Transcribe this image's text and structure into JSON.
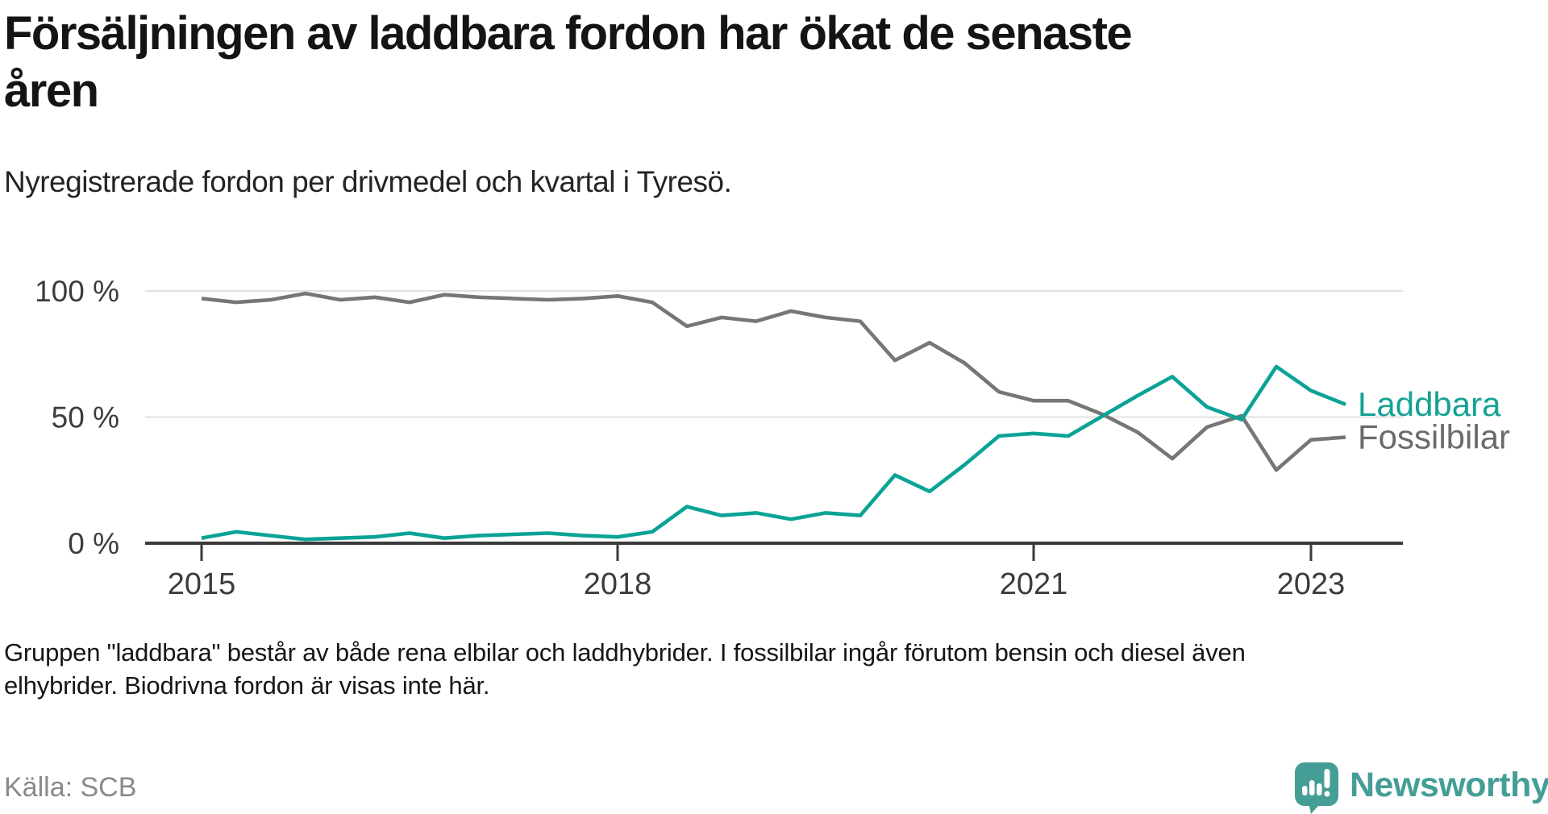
{
  "header": {
    "title": "Försäljningen av laddbara fordon har ökat de senaste åren",
    "title_lines": [
      "Försäljningen av laddbara fordon har ökat de senaste",
      "åren"
    ],
    "subtitle": "Nyregistrerade fordon per drivmedel och kvartal i Tyresö."
  },
  "footer": {
    "note": "Gruppen \"laddbara\" består av både rena elbilar och laddhybrider. I fossilbilar ingår förutom bensin och diesel även elhybrider. Biodrivna fordon är visas inte här.",
    "note_lines": [
      "Gruppen \"laddbara\" består av både rena elbilar och laddhybrider. I fossilbilar ingår förutom bensin och diesel även",
      "elhybrider. Biodrivna fordon är visas inte här."
    ],
    "source": "Källa: SCB",
    "logo_text": "Newsworthy"
  },
  "colors": {
    "laddbara": "#0aa396",
    "laddbara_label": "#14a295",
    "fossilbilar": "#767676",
    "fossilbilar_label": "#6b6b6b",
    "axis": "#3a3a3a",
    "gridline": "#e1e1e1",
    "tick_label": "#3c3c3c",
    "logo": "#459e96"
  },
  "chart_data": {
    "type": "line",
    "title": "Nyregistrerade fordon per drivmedel och kvartal i Tyresö",
    "x_unit": "quarter",
    "x_start": "2015 Q1",
    "x_end": "2023 Q2",
    "ylim": [
      0,
      100
    ],
    "grid": "horizontal",
    "legend_position": "line-end-labels",
    "categories": [
      "2015 Q1",
      "2015 Q2",
      "2015 Q3",
      "2015 Q4",
      "2016 Q1",
      "2016 Q2",
      "2016 Q3",
      "2016 Q4",
      "2017 Q1",
      "2017 Q2",
      "2017 Q3",
      "2017 Q4",
      "2018 Q1",
      "2018 Q2",
      "2018 Q3",
      "2018 Q4",
      "2019 Q1",
      "2019 Q2",
      "2019 Q3",
      "2019 Q4",
      "2020 Q1",
      "2020 Q2",
      "2020 Q3",
      "2020 Q4",
      "2021 Q1",
      "2021 Q2",
      "2021 Q3",
      "2021 Q4",
      "2022 Q1",
      "2022 Q2",
      "2022 Q3",
      "2022 Q4",
      "2023 Q1",
      "2023 Q2"
    ],
    "xticks": [
      {
        "label": "2015",
        "quarter_index": 0
      },
      {
        "label": "2018",
        "quarter_index": 12
      },
      {
        "label": "2021",
        "quarter_index": 24
      },
      {
        "label": "2023",
        "quarter_index": 32
      }
    ],
    "yticks": [
      {
        "label": "0 %",
        "value": 0
      },
      {
        "label": "50 %",
        "value": 50
      },
      {
        "label": "100 %",
        "value": 100
      }
    ],
    "series": [
      {
        "name": "Fossilbilar",
        "color": "#767676",
        "label_color": "#6b6b6b",
        "values": [
          97,
          95.5,
          96.5,
          99,
          96.5,
          97.5,
          95.5,
          98.5,
          97.5,
          97,
          96.5,
          97,
          98,
          95.5,
          86,
          89.5,
          88,
          92,
          89.5,
          88,
          72.5,
          79.5,
          71.5,
          60,
          56.5,
          56.5,
          51,
          44,
          33.5,
          46,
          50.5,
          29,
          41,
          42
        ]
      },
      {
        "name": "Laddbara",
        "color": "#0aa396",
        "label_color": "#14a295",
        "values": [
          2,
          4.5,
          3,
          1.5,
          2,
          2.5,
          4,
          2,
          3,
          3.5,
          4,
          3,
          2.5,
          4.5,
          14.5,
          11,
          12,
          9.5,
          12,
          11,
          27,
          20.5,
          31,
          42.5,
          43.5,
          42.5,
          50.5,
          58.5,
          66,
          54,
          49,
          70,
          60.5,
          55
        ]
      }
    ]
  }
}
